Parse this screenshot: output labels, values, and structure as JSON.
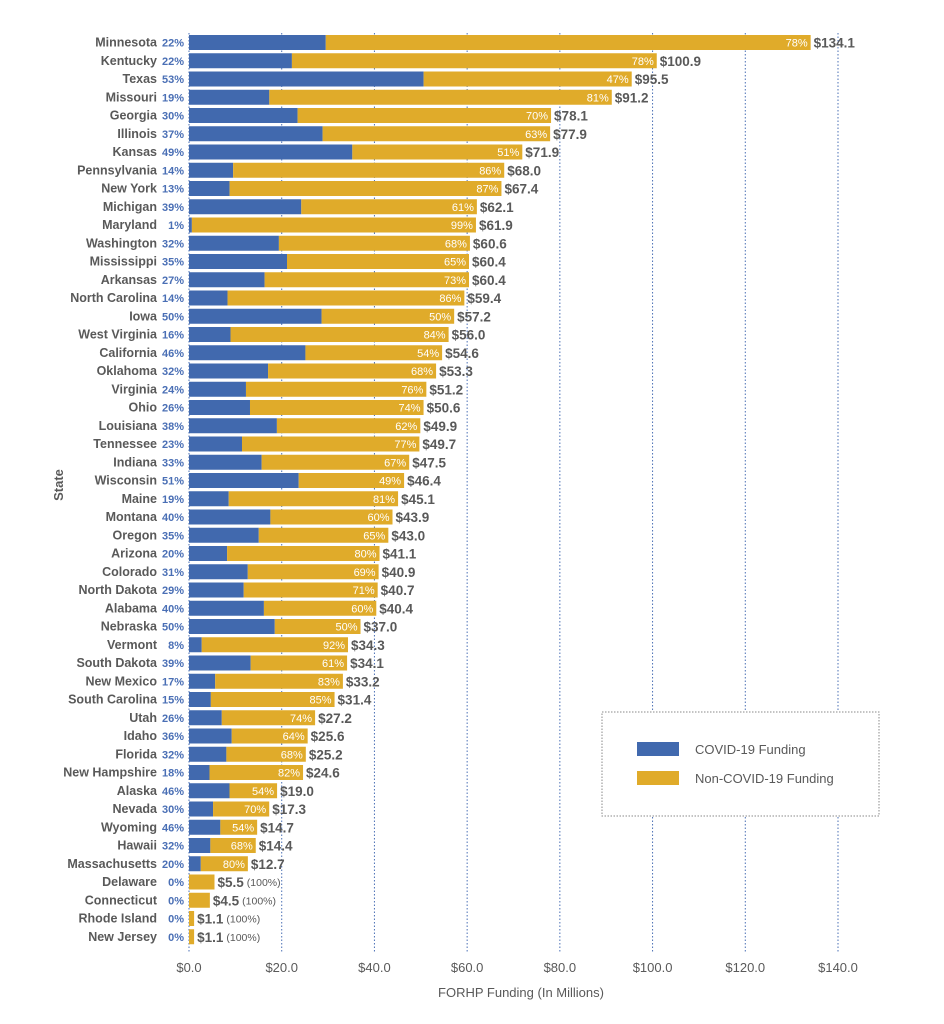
{
  "chart_data": {
    "type": "bar",
    "orientation": "horizontal",
    "stacked": true,
    "title": "",
    "xlabel": "FORHP Funding (In Millions)",
    "ylabel": "State",
    "xlim": [
      0,
      140
    ],
    "x_ticks": [
      0,
      20,
      40,
      60,
      80,
      100,
      120,
      140
    ],
    "x_tick_labels": [
      "$0.0",
      "$20.0",
      "$40.0",
      "$60.0",
      "$80.0",
      "$100.0",
      "$120.0",
      "$140.0"
    ],
    "grid": "vertical dotted",
    "legend_position": "bottom-right",
    "colors": {
      "covid": "#4169ae",
      "non_covid": "#e0ab2a"
    },
    "series": [
      {
        "name": "COVID-19 Funding",
        "key": "covid"
      },
      {
        "name": "Non-COVID-19 Funding",
        "key": "non_covid"
      }
    ],
    "categories": [
      "Minnesota",
      "Kentucky",
      "Texas",
      "Missouri",
      "Georgia",
      "Illinois",
      "Kansas",
      "Pennsylvania",
      "New York",
      "Michigan",
      "Maryland",
      "Washington",
      "Mississippi",
      "Arkansas",
      "North Carolina",
      "Iowa",
      "West Virginia",
      "California",
      "Oklahoma",
      "Virginia",
      "Ohio",
      "Louisiana",
      "Tennessee",
      "Indiana",
      "Wisconsin",
      "Maine",
      "Montana",
      "Oregon",
      "Arizona",
      "Colorado",
      "North Dakota",
      "Alabama",
      "Nebraska",
      "Vermont",
      "South Dakota",
      "New Mexico",
      "South Carolina",
      "Utah",
      "Idaho",
      "Florida",
      "New Hampshire",
      "Alaska",
      "Nevada",
      "Wyoming",
      "Hawaii",
      "Massachusetts",
      "Delaware",
      "Connecticut",
      "Rhode Island",
      "New Jersey"
    ],
    "totals": [
      134.1,
      100.9,
      95.5,
      91.2,
      78.1,
      77.9,
      71.9,
      68.0,
      67.4,
      62.1,
      61.9,
      60.6,
      60.4,
      60.4,
      59.4,
      57.2,
      56.0,
      54.6,
      53.3,
      51.2,
      50.6,
      49.9,
      49.7,
      47.5,
      46.4,
      45.1,
      43.9,
      43.0,
      41.1,
      40.9,
      40.7,
      40.4,
      37.0,
      34.3,
      34.1,
      33.2,
      31.4,
      27.2,
      25.6,
      25.2,
      24.6,
      19.0,
      17.3,
      14.7,
      14.4,
      12.7,
      5.5,
      4.5,
      1.1,
      1.1
    ],
    "total_labels": [
      "$134.1",
      "$100.9",
      "$95.5",
      "$91.2",
      "$78.1",
      "$77.9",
      "$71.9",
      "$68.0",
      "$67.4",
      "$62.1",
      "$61.9",
      "$60.6",
      "$60.4",
      "$60.4",
      "$59.4",
      "$57.2",
      "$56.0",
      "$54.6",
      "$53.3",
      "$51.2",
      "$50.6",
      "$49.9",
      "$49.7",
      "$47.5",
      "$46.4",
      "$45.1",
      "$43.9",
      "$43.0",
      "$41.1",
      "$40.9",
      "$40.7",
      "$40.4",
      "$37.0",
      "$34.3",
      "$34.1",
      "$33.2",
      "$31.4",
      "$27.2",
      "$25.6",
      "$25.2",
      "$24.6",
      "$19.0",
      "$17.3",
      "$14.7",
      "$14.4",
      "$12.7",
      "$5.5",
      "$4.5",
      "$1.1",
      "$1.1"
    ],
    "covid_pct": [
      22,
      22,
      53,
      19,
      30,
      37,
      49,
      14,
      13,
      39,
      1,
      32,
      35,
      27,
      14,
      50,
      16,
      46,
      32,
      24,
      26,
      38,
      23,
      33,
      51,
      19,
      40,
      35,
      20,
      31,
      29,
      40,
      50,
      8,
      39,
      17,
      15,
      26,
      36,
      32,
      18,
      46,
      30,
      46,
      32,
      20,
      0,
      0,
      0,
      0
    ],
    "non_covid_pct": [
      78,
      78,
      47,
      81,
      70,
      63,
      51,
      86,
      87,
      61,
      99,
      68,
      65,
      73,
      86,
      50,
      84,
      54,
      68,
      76,
      74,
      62,
      77,
      67,
      49,
      81,
      60,
      65,
      80,
      69,
      71,
      60,
      50,
      92,
      61,
      83,
      85,
      74,
      64,
      68,
      82,
      54,
      70,
      54,
      68,
      80,
      100,
      100,
      100,
      100
    ],
    "covid_pct_labels": [
      "22%",
      "22%",
      "53%",
      "19%",
      "30%",
      "37%",
      "49%",
      "14%",
      "13%",
      "39%",
      "1%",
      "32%",
      "35%",
      "27%",
      "14%",
      "50%",
      "16%",
      "46%",
      "32%",
      "24%",
      "26%",
      "38%",
      "23%",
      "33%",
      "51%",
      "19%",
      "40%",
      "35%",
      "20%",
      "31%",
      "29%",
      "40%",
      "50%",
      "8%",
      "39%",
      "17%",
      "15%",
      "26%",
      "36%",
      "32%",
      "18%",
      "46%",
      "30%",
      "46%",
      "32%",
      "20%",
      "0%",
      "0%",
      "0%",
      "0%"
    ],
    "non_covid_pct_labels": [
      "78%",
      "78%",
      "47%",
      "81%",
      "70%",
      "63%",
      "51%",
      "86%",
      "87%",
      "61%",
      "99%",
      "68%",
      "65%",
      "73%",
      "86%",
      "50%",
      "84%",
      "54%",
      "68%",
      "76%",
      "74%",
      "62%",
      "77%",
      "67%",
      "49%",
      "81%",
      "60%",
      "65%",
      "80%",
      "69%",
      "71%",
      "60%",
      "50%",
      "92%",
      "61%",
      "83%",
      "85%",
      "74%",
      "64%",
      "68%",
      "82%",
      "54%",
      "70%",
      "54%",
      "68%",
      "80%",
      "(100%)",
      "(100%)",
      "(100%)",
      "(100%)"
    ]
  },
  "legend": {
    "items": [
      {
        "label": "COVID-19 Funding",
        "color": "#4169ae"
      },
      {
        "label": "Non-COVID-19 Funding",
        "color": "#e0ab2a"
      }
    ]
  },
  "axes": {
    "x_title": "FORHP Funding (In Millions)",
    "y_title": "State"
  }
}
